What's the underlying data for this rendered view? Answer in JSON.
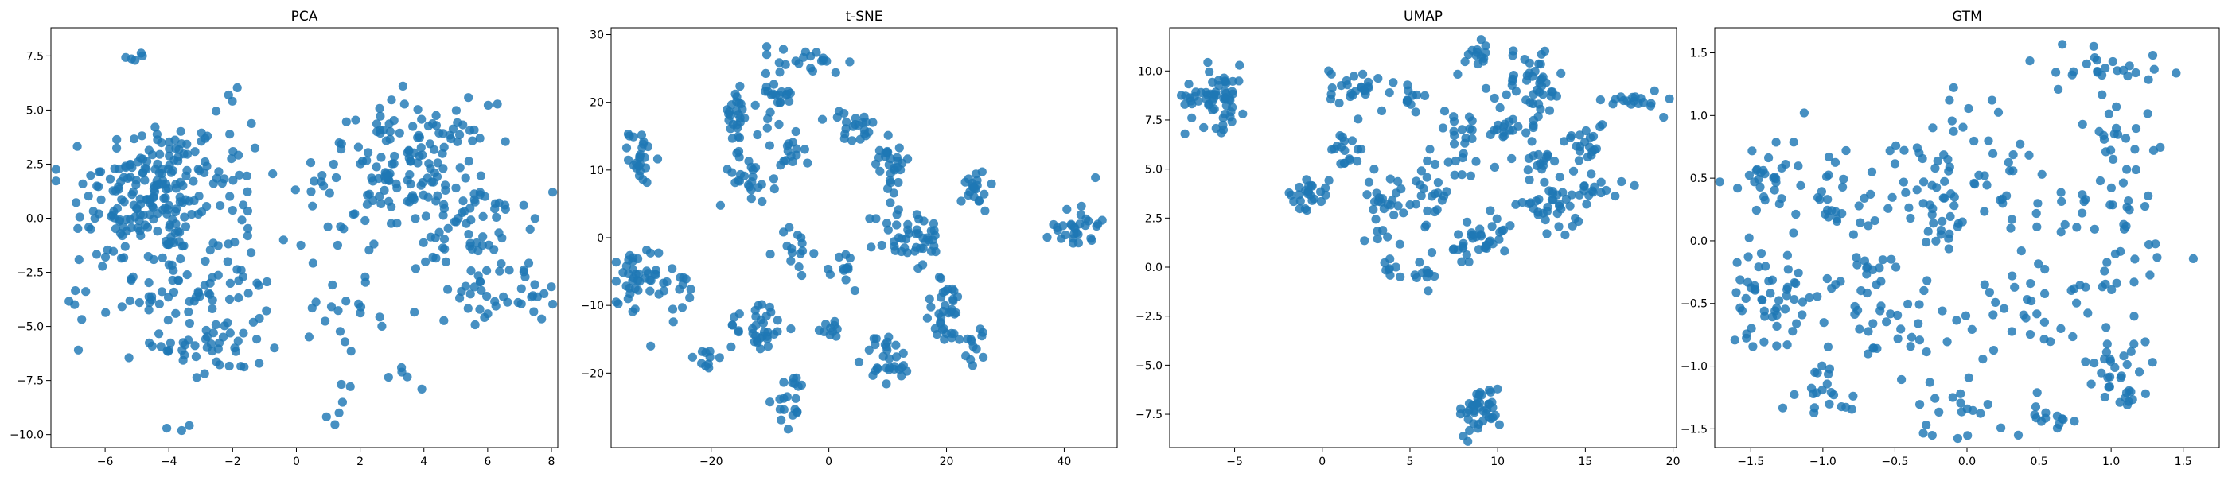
{
  "colors": {
    "points": "#1f77b4",
    "axes": "#000000",
    "background": "#ffffff"
  },
  "chart_data": [
    {
      "type": "scatter",
      "title": "PCA",
      "xlabel": "",
      "ylabel": "",
      "xlim": [
        -7.7,
        8.2
      ],
      "ylim": [
        -10.6,
        8.8
      ],
      "xticks": [
        -6,
        -4,
        -2,
        0,
        2,
        4,
        6,
        8
      ],
      "yticks": [
        -10.0,
        -7.5,
        -5.0,
        -2.5,
        0.0,
        2.5,
        5.0,
        7.5
      ],
      "ytick_labels": [
        "−10.0",
        "−7.5",
        "−5.0",
        "−2.5",
        "0.0",
        "2.5",
        "5.0",
        "7.5"
      ],
      "xtick_labels": [
        "−6",
        "−4",
        "−2",
        "0",
        "2",
        "4",
        "6",
        "8"
      ],
      "grid": false,
      "clusters": [
        {
          "cx": -4.3,
          "cy": 1.5,
          "sx": 1.0,
          "sy": 1.6,
          "n": 150
        },
        {
          "cx": -5.6,
          "cy": 0.2,
          "sx": 0.8,
          "sy": 1.5,
          "n": 45
        },
        {
          "cx": -4.0,
          "cy": -3.2,
          "sx": 0.8,
          "sy": 1.4,
          "n": 55
        },
        {
          "cx": -2.6,
          "cy": -5.8,
          "sx": 0.8,
          "sy": 1.0,
          "n": 45
        },
        {
          "cx": -2.0,
          "cy": 2.0,
          "sx": 0.6,
          "sy": 2.0,
          "n": 30
        },
        {
          "cx": -1.7,
          "cy": -3.0,
          "sx": 0.5,
          "sy": 1.0,
          "n": 18
        },
        {
          "cx": 3.5,
          "cy": 2.3,
          "sx": 1.3,
          "sy": 1.5,
          "n": 150
        },
        {
          "cx": 5.6,
          "cy": -0.8,
          "sx": 0.9,
          "sy": 1.5,
          "n": 60
        },
        {
          "cx": 6.5,
          "cy": -3.6,
          "sx": 0.9,
          "sy": 0.6,
          "n": 30
        },
        {
          "cx": 1.6,
          "cy": -4.2,
          "sx": 0.7,
          "sy": 1.0,
          "n": 18
        },
        {
          "cx": 1.4,
          "cy": -8.6,
          "sx": 0.2,
          "sy": 0.6,
          "n": 6
        },
        {
          "cx": -4.8,
          "cy": 7.6,
          "sx": 0.4,
          "sy": 0.3,
          "n": 5
        },
        {
          "cx": -3.7,
          "cy": -9.8,
          "sx": 0.3,
          "sy": 0.2,
          "n": 3
        },
        {
          "cx": 3.5,
          "cy": -7.3,
          "sx": 0.3,
          "sy": 0.6,
          "n": 5
        },
        {
          "cx": -6.8,
          "cy": -3.8,
          "sx": 0.3,
          "sy": 0.4,
          "n": 5
        },
        {
          "cx": 0.6,
          "cy": 0.3,
          "sx": 0.4,
          "sy": 1.5,
          "n": 12
        }
      ]
    },
    {
      "type": "scatter",
      "title": "t-SNE",
      "xlabel": "",
      "ylabel": "",
      "xlim": [
        -37,
        49
      ],
      "ylim": [
        -31,
        31
      ],
      "xticks": [
        -20,
        0,
        20,
        40
      ],
      "xtick_labels": [
        "−20",
        "0",
        "20",
        "40"
      ],
      "yticks": [
        -20,
        -10,
        0,
        10,
        20,
        30
      ],
      "ytick_labels": [
        "−20",
        "−10",
        "0",
        "10",
        "20",
        "30"
      ],
      "grid": false,
      "clusters": [
        {
          "cx": -32,
          "cy": 12,
          "sx": 1.0,
          "sy": 2.0,
          "n": 25
        },
        {
          "cx": -33,
          "cy": -7,
          "sx": 2.0,
          "sy": 3.0,
          "n": 40
        },
        {
          "cx": -16,
          "cy": 18,
          "sx": 1.2,
          "sy": 2.0,
          "n": 25
        },
        {
          "cx": -14,
          "cy": 9,
          "sx": 2.5,
          "sy": 2.0,
          "n": 25
        },
        {
          "cx": -9,
          "cy": 21,
          "sx": 1.5,
          "sy": 3.0,
          "n": 30
        },
        {
          "cx": -7,
          "cy": 12,
          "sx": 1.5,
          "sy": 1.5,
          "n": 15
        },
        {
          "cx": -2,
          "cy": 26,
          "sx": 2.5,
          "sy": 1.0,
          "n": 15
        },
        {
          "cx": 4,
          "cy": 16,
          "sx": 2.0,
          "sy": 1.5,
          "n": 20
        },
        {
          "cx": 10,
          "cy": 12,
          "sx": 2.0,
          "sy": 3.0,
          "n": 30
        },
        {
          "cx": 25,
          "cy": 7,
          "sx": 1.2,
          "sy": 1.5,
          "n": 20
        },
        {
          "cx": 42,
          "cy": 2,
          "sx": 2.0,
          "sy": 2.0,
          "n": 30
        },
        {
          "cx": -25,
          "cy": -8,
          "sx": 2.0,
          "sy": 2.0,
          "n": 15
        },
        {
          "cx": -12,
          "cy": -13,
          "sx": 2.5,
          "sy": 2.0,
          "n": 35
        },
        {
          "cx": -6,
          "cy": -2,
          "sx": 1.5,
          "sy": 2.0,
          "n": 15
        },
        {
          "cx": 3,
          "cy": -5,
          "sx": 1.0,
          "sy": 1.5,
          "n": 12
        },
        {
          "cx": 14,
          "cy": 0,
          "sx": 3.0,
          "sy": 2.5,
          "n": 45
        },
        {
          "cx": 20,
          "cy": -11,
          "sx": 2.0,
          "sy": 2.5,
          "n": 35
        },
        {
          "cx": 10,
          "cy": -18,
          "sx": 2.0,
          "sy": 2.0,
          "n": 30
        },
        {
          "cx": -6,
          "cy": -24,
          "sx": 1.5,
          "sy": 2.0,
          "n": 20
        },
        {
          "cx": 25,
          "cy": -16,
          "sx": 1.0,
          "sy": 1.5,
          "n": 12
        },
        {
          "cx": -21,
          "cy": -18,
          "sx": 1.5,
          "sy": 1.0,
          "n": 10
        },
        {
          "cx": 0,
          "cy": -13,
          "sx": 1.5,
          "sy": 1.0,
          "n": 10
        }
      ]
    },
    {
      "type": "scatter",
      "title": "UMAP",
      "xlabel": "",
      "ylabel": "",
      "xlim": [
        -8.7,
        20.2
      ],
      "ylim": [
        -9.2,
        12.2
      ],
      "xticks": [
        -5,
        0,
        5,
        10,
        15,
        20
      ],
      "xtick_labels": [
        "−5",
        "0",
        "5",
        "10",
        "15",
        "20"
      ],
      "yticks": [
        -7.5,
        -5.0,
        -2.5,
        0.0,
        2.5,
        5.0,
        7.5,
        10.0
      ],
      "ytick_labels": [
        "−7.5",
        "−5.0",
        "−2.5",
        "0.0",
        "2.5",
        "5.0",
        "7.5",
        "10.0"
      ],
      "grid": false,
      "clusters": [
        {
          "cx": -6.0,
          "cy": 8.7,
          "sx": 0.9,
          "sy": 0.8,
          "n": 60
        },
        {
          "cx": -0.8,
          "cy": 3.8,
          "sx": 0.6,
          "sy": 0.4,
          "n": 25
        },
        {
          "cx": 1.8,
          "cy": 9.2,
          "sx": 0.7,
          "sy": 0.5,
          "n": 25
        },
        {
          "cx": 5.0,
          "cy": 8.6,
          "sx": 0.5,
          "sy": 0.3,
          "n": 12
        },
        {
          "cx": 1.5,
          "cy": 6.0,
          "sx": 0.5,
          "sy": 0.6,
          "n": 18
        },
        {
          "cx": 3.8,
          "cy": 3.3,
          "sx": 0.8,
          "sy": 0.8,
          "n": 30
        },
        {
          "cx": 6.0,
          "cy": 3.6,
          "sx": 0.6,
          "sy": 1.0,
          "n": 20
        },
        {
          "cx": 8.0,
          "cy": 7.0,
          "sx": 0.8,
          "sy": 1.5,
          "n": 30
        },
        {
          "cx": 9.0,
          "cy": 10.6,
          "sx": 0.3,
          "sy": 0.4,
          "n": 12
        },
        {
          "cx": 12.0,
          "cy": 9.2,
          "sx": 0.9,
          "sy": 1.0,
          "n": 45
        },
        {
          "cx": 12.5,
          "cy": 5.5,
          "sx": 0.5,
          "sy": 0.6,
          "n": 15
        },
        {
          "cx": 15.0,
          "cy": 6.5,
          "sx": 0.6,
          "sy": 0.6,
          "n": 20
        },
        {
          "cx": 17.8,
          "cy": 8.5,
          "sx": 0.8,
          "sy": 0.3,
          "n": 18
        },
        {
          "cx": 13.0,
          "cy": 3.0,
          "sx": 0.9,
          "sy": 0.6,
          "n": 35
        },
        {
          "cx": 15.5,
          "cy": 4.2,
          "sx": 0.8,
          "sy": 0.5,
          "n": 18
        },
        {
          "cx": 9.0,
          "cy": 1.2,
          "sx": 1.0,
          "sy": 0.7,
          "n": 35
        },
        {
          "cx": 5.8,
          "cy": -0.5,
          "sx": 0.3,
          "sy": 0.5,
          "n": 12
        },
        {
          "cx": 4.0,
          "cy": 0.0,
          "sx": 0.3,
          "sy": 0.3,
          "n": 8
        },
        {
          "cx": 9.0,
          "cy": -7.3,
          "sx": 0.6,
          "sy": 0.6,
          "n": 40
        },
        {
          "cx": 10.5,
          "cy": 7.5,
          "sx": 0.5,
          "sy": 0.8,
          "n": 15
        }
      ]
    },
    {
      "type": "scatter",
      "title": "GTM",
      "xlabel": "",
      "ylabel": "",
      "xlim": [
        -1.75,
        1.75
      ],
      "ylim": [
        -1.65,
        1.7
      ],
      "xticks": [
        -1.5,
        -1.0,
        -0.5,
        0.0,
        0.5,
        1.0,
        1.5
      ],
      "xtick_labels": [
        "−1.5",
        "−1.0",
        "−0.5",
        "0.0",
        "0.5",
        "1.0",
        "1.5"
      ],
      "yticks": [
        -1.5,
        -1.0,
        -0.5,
        0.0,
        0.5,
        1.0,
        1.5
      ],
      "ytick_labels": [
        "−1.5",
        "−1.0",
        "−0.5",
        "0.0",
        "0.5",
        "1.0",
        "1.5"
      ],
      "grid": false,
      "clusters": [
        {
          "cx": -1.4,
          "cy": -0.45,
          "sx": 0.12,
          "sy": 0.2,
          "n": 50
        },
        {
          "cx": -1.4,
          "cy": 0.5,
          "sx": 0.12,
          "sy": 0.12,
          "n": 25
        },
        {
          "cx": -0.9,
          "cy": 0.4,
          "sx": 0.2,
          "sy": 0.25,
          "n": 35
        },
        {
          "cx": -0.35,
          "cy": 0.5,
          "sx": 0.15,
          "sy": 0.15,
          "n": 25
        },
        {
          "cx": 0.2,
          "cy": 0.45,
          "sx": 0.2,
          "sy": 0.2,
          "n": 30
        },
        {
          "cx": 0.9,
          "cy": 1.4,
          "sx": 0.25,
          "sy": 0.1,
          "n": 25
        },
        {
          "cx": 1.1,
          "cy": 0.8,
          "sx": 0.15,
          "sy": 0.2,
          "n": 20
        },
        {
          "cx": 0.9,
          "cy": 0.2,
          "sx": 0.2,
          "sy": 0.2,
          "n": 25
        },
        {
          "cx": 1.2,
          "cy": -0.2,
          "sx": 0.15,
          "sy": 0.2,
          "n": 15
        },
        {
          "cx": -0.8,
          "cy": -0.4,
          "sx": 0.2,
          "sy": 0.25,
          "n": 30
        },
        {
          "cx": -0.3,
          "cy": -0.7,
          "sx": 0.25,
          "sy": 0.2,
          "n": 30
        },
        {
          "cx": 0.5,
          "cy": -0.5,
          "sx": 0.2,
          "sy": 0.25,
          "n": 30
        },
        {
          "cx": 1.05,
          "cy": -1.0,
          "sx": 0.12,
          "sy": 0.1,
          "n": 25
        },
        {
          "cx": -1.0,
          "cy": -1.2,
          "sx": 0.15,
          "sy": 0.12,
          "n": 20
        },
        {
          "cx": 0.0,
          "cy": -1.35,
          "sx": 0.2,
          "sy": 0.12,
          "n": 20
        },
        {
          "cx": 0.55,
          "cy": -1.4,
          "sx": 0.1,
          "sy": 0.06,
          "n": 12
        },
        {
          "cx": -0.2,
          "cy": 0.0,
          "sx": 0.15,
          "sy": 0.15,
          "n": 15
        },
        {
          "cx": 0.0,
          "cy": 1.0,
          "sx": 0.2,
          "sy": 0.15,
          "n": 10
        },
        {
          "cx": 1.1,
          "cy": -1.25,
          "sx": 0.05,
          "sy": 0.05,
          "n": 8
        }
      ]
    }
  ]
}
